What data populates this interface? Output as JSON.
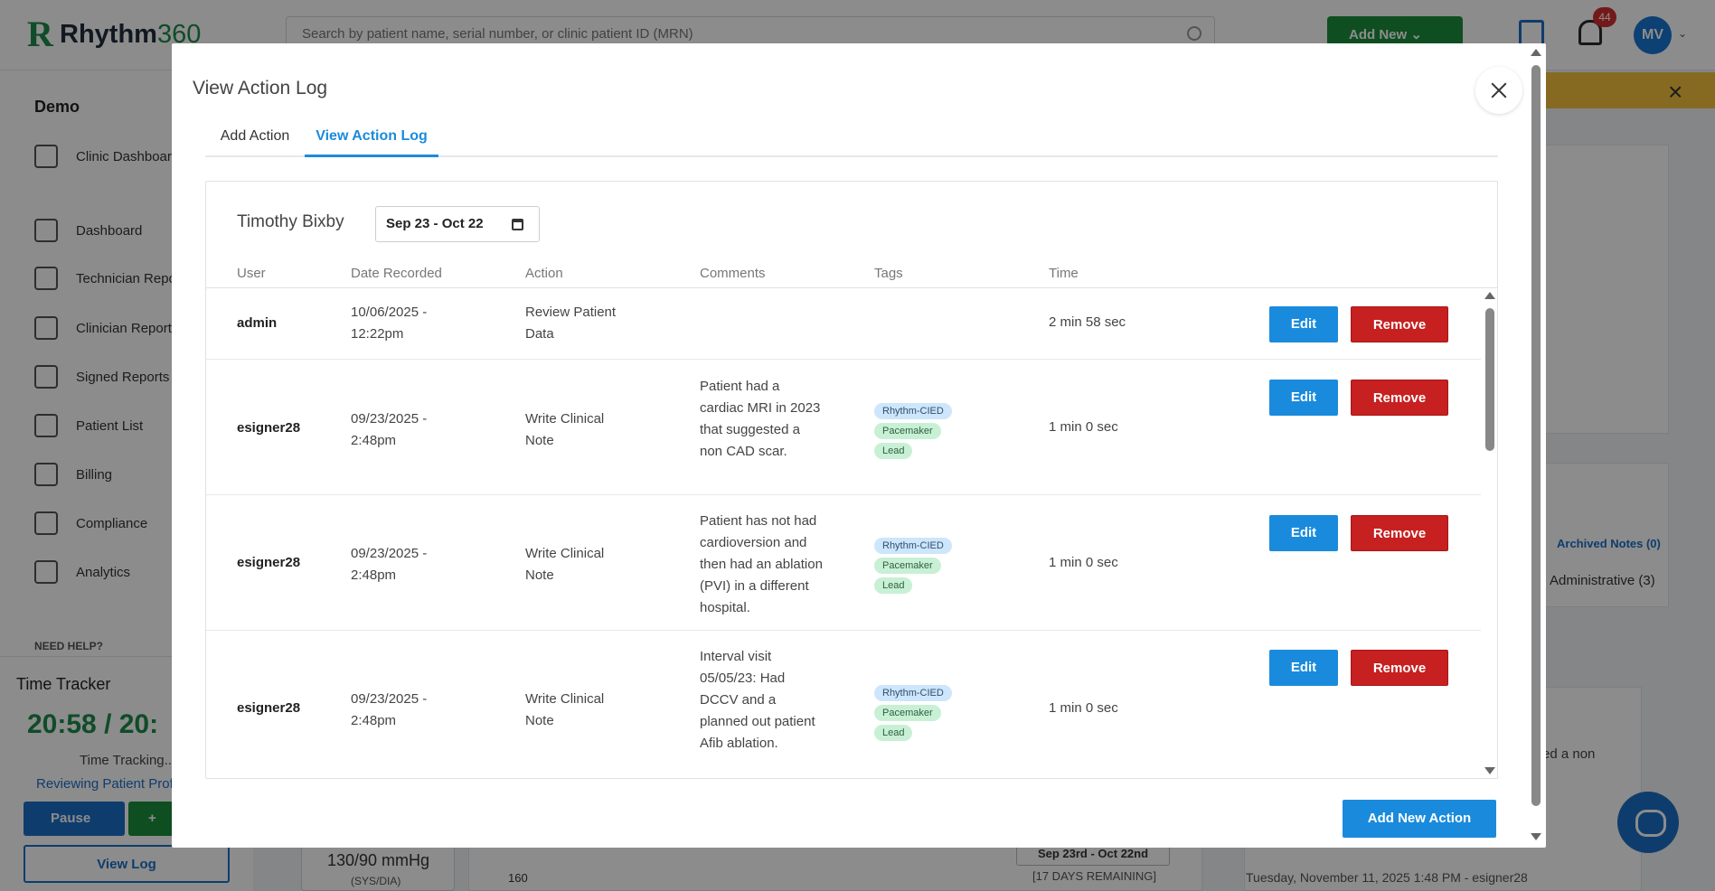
{
  "app": {
    "logo_letter": "R",
    "logo_word": "Rhythm",
    "logo_number": "360",
    "search_placeholder": "Search by patient name, serial number, or clinic patient ID (MRN)",
    "add_new_label": "Add New",
    "notification_count": "44",
    "user_initials": "MV"
  },
  "sidebar": {
    "clinic_name": "Demo",
    "items": [
      {
        "label": "Clinic Dashboard",
        "icon": "home-icon"
      },
      {
        "label": "Dashboard",
        "icon": "dashboard-icon"
      },
      {
        "label": "Technician Reports",
        "icon": "report-icon"
      },
      {
        "label": "Clinician Reports",
        "icon": "layers-icon"
      },
      {
        "label": "Signed Reports",
        "icon": "layers-icon"
      },
      {
        "label": "Patient List",
        "icon": "users-icon"
      },
      {
        "label": "Billing",
        "icon": "dollar-icon"
      },
      {
        "label": "Compliance",
        "icon": "warning-icon"
      },
      {
        "label": "Analytics",
        "icon": "pulse-icon"
      }
    ],
    "need_help": "NEED HELP?"
  },
  "time_tracker": {
    "title": "Time Tracker",
    "time": "20:58 / 20:",
    "status": "Time Tracking...",
    "activity": "Reviewing Patient Profi",
    "pause_label": "Pause",
    "add_label": "+",
    "view_log_label": "View Log"
  },
  "background": {
    "archived_notes": "Archived Notes (0)",
    "administrative": "Administrative (3)",
    "note_snippet": "ed a non",
    "note_footer": "Tuesday, November 11, 2025 1:48 PM - esigner28",
    "bp_value": "130/90 mmHg",
    "bp_unit": "(SYS/DIA)",
    "chart_tick": "160",
    "period_box": "Sep 23rd - Oct 22nd",
    "remaining": "[17 DAYS REMAINING]"
  },
  "modal": {
    "title": "View Action Log",
    "tabs": [
      "Add Action",
      "View Action Log"
    ],
    "active_tab": "View Action Log",
    "patient_name": "Timothy Bixby",
    "date_range": "Sep 23 - Oct 22",
    "columns": [
      "User",
      "Date Recorded",
      "Action",
      "Comments",
      "Tags",
      "Time"
    ],
    "edit_label": "Edit",
    "remove_label": "Remove",
    "add_new_action_label": "Add New Action",
    "rows": [
      {
        "user": "admin",
        "date": "10/06/2025 - 12:22pm",
        "action": "Review Patient Data",
        "comment": "",
        "tags": [],
        "time": "2 min 58 sec"
      },
      {
        "user": "esigner28",
        "date": "09/23/2025 - 2:48pm",
        "action": "Write Clinical Note",
        "comment": "Patient had a cardiac MRI in 2023 that suggested a non CAD scar.",
        "tags": [
          "Rhythm-CIED",
          "Pacemaker",
          "Lead"
        ],
        "time": "1 min 0 sec"
      },
      {
        "user": "esigner28",
        "date": "09/23/2025 - 2:48pm",
        "action": "Write Clinical Note",
        "comment": "Patient has not had cardioversion and then had an ablation (PVI) in a different hospital.",
        "tags": [
          "Rhythm-CIED",
          "Pacemaker",
          "Lead"
        ],
        "time": "1 min 0 sec"
      },
      {
        "user": "esigner28",
        "date": "09/23/2025 - 2:48pm",
        "action": "Write Clinical Note",
        "comment": "Interval visit 05/05/23: Had DCCV and a planned out patient Afib ablation.",
        "tags": [
          "Rhythm-CIED",
          "Pacemaker",
          "Lead"
        ],
        "time": "1 min 0 sec"
      }
    ]
  },
  "colors": {
    "primary_blue": "#1a8bdc",
    "danger_red": "#c72020",
    "brand_green": "#1e8a4c",
    "tag_blue": "#cde6fb",
    "tag_green": "#c8f0d5"
  }
}
